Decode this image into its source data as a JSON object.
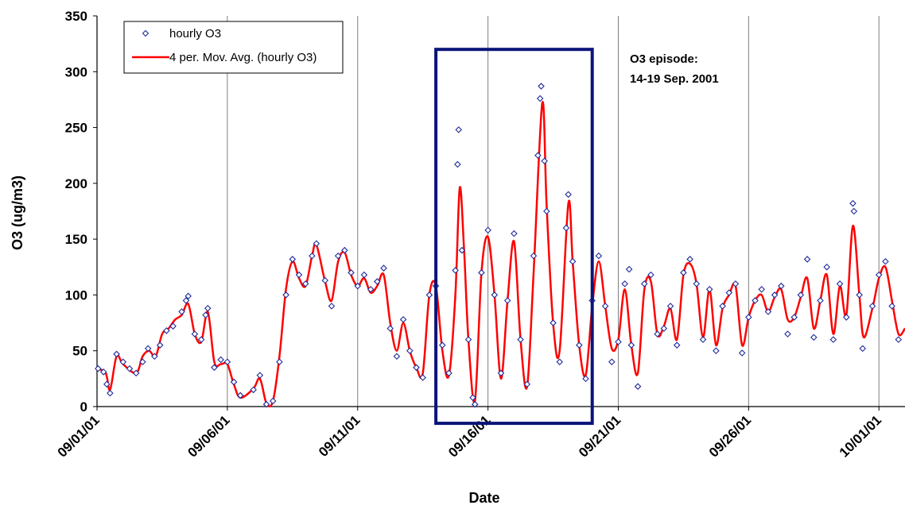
{
  "chart_data": {
    "type": "scatter",
    "xlabel": "Date",
    "ylabel": "O3 (ug/m3)",
    "ylim": [
      0,
      350
    ],
    "yticks": [
      0,
      50,
      100,
      150,
      200,
      250,
      300,
      350
    ],
    "xlim": [
      "2001-09-01",
      "2001-10-02"
    ],
    "xticks": [
      "09/01/01",
      "09/06/01",
      "09/11/01",
      "09/16/01",
      "09/21/01",
      "09/26/01",
      "10/01/01"
    ],
    "grid": "vertical lines at major x ticks",
    "legend_position": "top-left",
    "colors": {
      "scatter": "#1f2a9a",
      "moving_average": "#ff0000",
      "episode_box": "#0a1478"
    },
    "series": [
      {
        "name": "hourly O3",
        "kind": "scatter",
        "values": [
          [
            "2001-09-01 01:00",
            34
          ],
          [
            "2001-09-01 06:00",
            31
          ],
          [
            "2001-09-01 09:00",
            20
          ],
          [
            "2001-09-01 12:00",
            12
          ],
          [
            "2001-09-01 18:00",
            47
          ],
          [
            "2001-09-02 00:00",
            40
          ],
          [
            "2001-09-02 06:00",
            34
          ],
          [
            "2001-09-02 12:00",
            30
          ],
          [
            "2001-09-02 18:00",
            40
          ],
          [
            "2001-09-02 23:00",
            52
          ],
          [
            "2001-09-03 05:00",
            45
          ],
          [
            "2001-09-03 10:00",
            55
          ],
          [
            "2001-09-03 16:00",
            68
          ],
          [
            "2001-09-03 22:00",
            72
          ],
          [
            "2001-09-04 06:00",
            85
          ],
          [
            "2001-09-04 10:00",
            95
          ],
          [
            "2001-09-04 12:00",
            99
          ],
          [
            "2001-09-04 18:00",
            65
          ],
          [
            "2001-09-05 00:00",
            60
          ],
          [
            "2001-09-05 04:00",
            82
          ],
          [
            "2001-09-05 06:00",
            88
          ],
          [
            "2001-09-05 12:00",
            35
          ],
          [
            "2001-09-05 18:00",
            42
          ],
          [
            "2001-09-06 00:00",
            40
          ],
          [
            "2001-09-06 06:00",
            22
          ],
          [
            "2001-09-06 12:00",
            10
          ],
          [
            "2001-09-07 00:00",
            15
          ],
          [
            "2001-09-07 06:00",
            28
          ],
          [
            "2001-09-07 12:00",
            2
          ],
          [
            "2001-09-07 18:00",
            5
          ],
          [
            "2001-09-08 00:00",
            40
          ],
          [
            "2001-09-08 06:00",
            100
          ],
          [
            "2001-09-08 12:00",
            132
          ],
          [
            "2001-09-08 18:00",
            118
          ],
          [
            "2001-09-09 00:00",
            110
          ],
          [
            "2001-09-09 06:00",
            135
          ],
          [
            "2001-09-09 10:00",
            146
          ],
          [
            "2001-09-09 18:00",
            113
          ],
          [
            "2001-09-10 00:00",
            90
          ],
          [
            "2001-09-10 06:00",
            135
          ],
          [
            "2001-09-10 12:00",
            140
          ],
          [
            "2001-09-10 18:00",
            120
          ],
          [
            "2001-09-11 00:00",
            108
          ],
          [
            "2001-09-11 06:00",
            118
          ],
          [
            "2001-09-11 12:00",
            105
          ],
          [
            "2001-09-11 18:00",
            112
          ],
          [
            "2001-09-12 00:00",
            124
          ],
          [
            "2001-09-12 06:00",
            70
          ],
          [
            "2001-09-12 12:00",
            45
          ],
          [
            "2001-09-12 18:00",
            78
          ],
          [
            "2001-09-13 00:00",
            50
          ],
          [
            "2001-09-13 06:00",
            35
          ],
          [
            "2001-09-13 12:00",
            26
          ],
          [
            "2001-09-13 18:00",
            100
          ],
          [
            "2001-09-14 00:00",
            108
          ],
          [
            "2001-09-14 06:00",
            55
          ],
          [
            "2001-09-14 12:00",
            30
          ],
          [
            "2001-09-14 18:00",
            122
          ],
          [
            "2001-09-14 20:00",
            217
          ],
          [
            "2001-09-14 21:00",
            248
          ],
          [
            "2001-09-15 00:00",
            140
          ],
          [
            "2001-09-15 06:00",
            60
          ],
          [
            "2001-09-15 10:00",
            8
          ],
          [
            "2001-09-15 12:00",
            2
          ],
          [
            "2001-09-15 18:00",
            120
          ],
          [
            "2001-09-16 00:00",
            158
          ],
          [
            "2001-09-16 06:00",
            100
          ],
          [
            "2001-09-16 12:00",
            30
          ],
          [
            "2001-09-16 18:00",
            95
          ],
          [
            "2001-09-17 00:00",
            155
          ],
          [
            "2001-09-17 06:00",
            60
          ],
          [
            "2001-09-17 12:00",
            20
          ],
          [
            "2001-09-17 18:00",
            135
          ],
          [
            "2001-09-17 22:00",
            225
          ],
          [
            "2001-09-18 00:00",
            276
          ],
          [
            "2001-09-18 01:00",
            287
          ],
          [
            "2001-09-18 04:00",
            220
          ],
          [
            "2001-09-18 06:00",
            175
          ],
          [
            "2001-09-18 12:00",
            75
          ],
          [
            "2001-09-18 18:00",
            40
          ],
          [
            "2001-09-19 00:00",
            160
          ],
          [
            "2001-09-19 02:00",
            190
          ],
          [
            "2001-09-19 06:00",
            130
          ],
          [
            "2001-09-19 12:00",
            55
          ],
          [
            "2001-09-19 18:00",
            25
          ],
          [
            "2001-09-20 00:00",
            95
          ],
          [
            "2001-09-20 06:00",
            135
          ],
          [
            "2001-09-20 12:00",
            90
          ],
          [
            "2001-09-20 18:00",
            40
          ],
          [
            "2001-09-21 00:00",
            58
          ],
          [
            "2001-09-21 06:00",
            110
          ],
          [
            "2001-09-21 10:00",
            123
          ],
          [
            "2001-09-21 12:00",
            55
          ],
          [
            "2001-09-21 18:00",
            18
          ],
          [
            "2001-09-22 00:00",
            110
          ],
          [
            "2001-09-22 06:00",
            118
          ],
          [
            "2001-09-22 12:00",
            65
          ],
          [
            "2001-09-22 18:00",
            70
          ],
          [
            "2001-09-23 00:00",
            90
          ],
          [
            "2001-09-23 06:00",
            55
          ],
          [
            "2001-09-23 12:00",
            120
          ],
          [
            "2001-09-23 18:00",
            132
          ],
          [
            "2001-09-24 00:00",
            110
          ],
          [
            "2001-09-24 06:00",
            60
          ],
          [
            "2001-09-24 12:00",
            105
          ],
          [
            "2001-09-24 18:00",
            50
          ],
          [
            "2001-09-25 00:00",
            90
          ],
          [
            "2001-09-25 06:00",
            102
          ],
          [
            "2001-09-25 12:00",
            110
          ],
          [
            "2001-09-25 18:00",
            48
          ],
          [
            "2001-09-26 00:00",
            80
          ],
          [
            "2001-09-26 06:00",
            95
          ],
          [
            "2001-09-26 12:00",
            105
          ],
          [
            "2001-09-26 18:00",
            85
          ],
          [
            "2001-09-27 00:00",
            100
          ],
          [
            "2001-09-27 06:00",
            108
          ],
          [
            "2001-09-27 12:00",
            65
          ],
          [
            "2001-09-27 18:00",
            80
          ],
          [
            "2001-09-28 00:00",
            100
          ],
          [
            "2001-09-28 06:00",
            132
          ],
          [
            "2001-09-28 12:00",
            62
          ],
          [
            "2001-09-28 18:00",
            95
          ],
          [
            "2001-09-29 00:00",
            125
          ],
          [
            "2001-09-29 06:00",
            60
          ],
          [
            "2001-09-29 12:00",
            110
          ],
          [
            "2001-09-29 18:00",
            80
          ],
          [
            "2001-09-30 00:00",
            182
          ],
          [
            "2001-09-30 01:00",
            175
          ],
          [
            "2001-09-30 06:00",
            100
          ],
          [
            "2001-09-30 09:00",
            52
          ],
          [
            "2001-09-30 18:00",
            90
          ],
          [
            "2001-10-01 00:00",
            118
          ],
          [
            "2001-10-01 06:00",
            130
          ],
          [
            "2001-10-01 12:00",
            90
          ],
          [
            "2001-10-01 18:00",
            60
          ]
        ]
      },
      {
        "name": "4 per. Mov. Avg. (hourly O3)",
        "kind": "line",
        "values": [
          [
            "2001-09-01 00:00",
            34
          ],
          [
            "2001-09-01 08:00",
            30
          ],
          [
            "2001-09-01 12:00",
            15
          ],
          [
            "2001-09-01 18:00",
            45
          ],
          [
            "2001-09-02 00:00",
            38
          ],
          [
            "2001-09-02 12:00",
            30
          ],
          [
            "2001-09-02 18:00",
            45
          ],
          [
            "2001-09-03 00:00",
            50
          ],
          [
            "2001-09-03 06:00",
            45
          ],
          [
            "2001-09-03 12:00",
            65
          ],
          [
            "2001-09-03 18:00",
            70
          ],
          [
            "2001-09-04 00:00",
            78
          ],
          [
            "2001-09-04 06:00",
            82
          ],
          [
            "2001-09-04 12:00",
            92
          ],
          [
            "2001-09-04 18:00",
            65
          ],
          [
            "2001-09-05 00:00",
            58
          ],
          [
            "2001-09-05 06:00",
            85
          ],
          [
            "2001-09-05 12:00",
            40
          ],
          [
            "2001-09-05 18:00",
            38
          ],
          [
            "2001-09-06 00:00",
            38
          ],
          [
            "2001-09-06 06:00",
            20
          ],
          [
            "2001-09-06 12:00",
            8
          ],
          [
            "2001-09-07 00:00",
            16
          ],
          [
            "2001-09-07 06:00",
            25
          ],
          [
            "2001-09-07 12:00",
            3
          ],
          [
            "2001-09-07 18:00",
            5
          ],
          [
            "2001-09-08 00:00",
            45
          ],
          [
            "2001-09-08 06:00",
            105
          ],
          [
            "2001-09-08 12:00",
            130
          ],
          [
            "2001-09-08 18:00",
            115
          ],
          [
            "2001-09-09 00:00",
            108
          ],
          [
            "2001-09-09 06:00",
            135
          ],
          [
            "2001-09-09 10:00",
            145
          ],
          [
            "2001-09-09 18:00",
            112
          ],
          [
            "2001-09-10 00:00",
            95
          ],
          [
            "2001-09-10 06:00",
            130
          ],
          [
            "2001-09-10 12:00",
            138
          ],
          [
            "2001-09-10 18:00",
            118
          ],
          [
            "2001-09-11 00:00",
            108
          ],
          [
            "2001-09-11 06:00",
            115
          ],
          [
            "2001-09-11 12:00",
            102
          ],
          [
            "2001-09-11 18:00",
            108
          ],
          [
            "2001-09-12 00:00",
            118
          ],
          [
            "2001-09-12 06:00",
            75
          ],
          [
            "2001-09-12 12:00",
            50
          ],
          [
            "2001-09-12 18:00",
            75
          ],
          [
            "2001-09-13 00:00",
            50
          ],
          [
            "2001-09-13 06:00",
            35
          ],
          [
            "2001-09-13 12:00",
            30
          ],
          [
            "2001-09-13 18:00",
            100
          ],
          [
            "2001-09-14 00:00",
            108
          ],
          [
            "2001-09-14 06:00",
            50
          ],
          [
            "2001-09-14 12:00",
            28
          ],
          [
            "2001-09-14 18:00",
            100
          ],
          [
            "2001-09-14 22:00",
            196
          ],
          [
            "2001-09-15 02:00",
            140
          ],
          [
            "2001-09-15 06:00",
            60
          ],
          [
            "2001-09-15 12:00",
            5
          ],
          [
            "2001-09-15 18:00",
            120
          ],
          [
            "2001-09-16 00:00",
            152
          ],
          [
            "2001-09-16 06:00",
            100
          ],
          [
            "2001-09-16 12:00",
            25
          ],
          [
            "2001-09-16 18:00",
            95
          ],
          [
            "2001-09-17 00:00",
            148
          ],
          [
            "2001-09-17 06:00",
            60
          ],
          [
            "2001-09-17 12:00",
            18
          ],
          [
            "2001-09-17 18:00",
            120
          ],
          [
            "2001-09-18 02:00",
            272
          ],
          [
            "2001-09-18 06:00",
            180
          ],
          [
            "2001-09-18 12:00",
            75
          ],
          [
            "2001-09-18 18:00",
            50
          ],
          [
            "2001-09-19 02:00",
            182
          ],
          [
            "2001-09-19 06:00",
            130
          ],
          [
            "2001-09-19 12:00",
            55
          ],
          [
            "2001-09-19 18:00",
            28
          ],
          [
            "2001-09-20 00:00",
            90
          ],
          [
            "2001-09-20 06:00",
            130
          ],
          [
            "2001-09-20 12:00",
            90
          ],
          [
            "2001-09-20 18:00",
            52
          ],
          [
            "2001-09-21 00:00",
            60
          ],
          [
            "2001-09-21 06:00",
            105
          ],
          [
            "2001-09-21 12:00",
            55
          ],
          [
            "2001-09-21 18:00",
            30
          ],
          [
            "2001-09-22 00:00",
            105
          ],
          [
            "2001-09-22 06:00",
            112
          ],
          [
            "2001-09-22 12:00",
            65
          ],
          [
            "2001-09-22 18:00",
            72
          ],
          [
            "2001-09-23 00:00",
            88
          ],
          [
            "2001-09-23 06:00",
            60
          ],
          [
            "2001-09-23 12:00",
            118
          ],
          [
            "2001-09-23 18:00",
            128
          ],
          [
            "2001-09-24 00:00",
            110
          ],
          [
            "2001-09-24 06:00",
            62
          ],
          [
            "2001-09-24 12:00",
            105
          ],
          [
            "2001-09-24 18:00",
            55
          ],
          [
            "2001-09-25 00:00",
            88
          ],
          [
            "2001-09-25 06:00",
            100
          ],
          [
            "2001-09-25 12:00",
            108
          ],
          [
            "2001-09-25 18:00",
            55
          ],
          [
            "2001-09-26 00:00",
            80
          ],
          [
            "2001-09-26 06:00",
            95
          ],
          [
            "2001-09-26 12:00",
            100
          ],
          [
            "2001-09-26 18:00",
            85
          ],
          [
            "2001-09-27 00:00",
            98
          ],
          [
            "2001-09-27 06:00",
            105
          ],
          [
            "2001-09-27 12:00",
            78
          ],
          [
            "2001-09-27 18:00",
            80
          ],
          [
            "2001-09-28 00:00",
            98
          ],
          [
            "2001-09-28 06:00",
            115
          ],
          [
            "2001-09-28 12:00",
            70
          ],
          [
            "2001-09-28 18:00",
            95
          ],
          [
            "2001-09-29 00:00",
            118
          ],
          [
            "2001-09-29 06:00",
            65
          ],
          [
            "2001-09-29 12:00",
            108
          ],
          [
            "2001-09-29 18:00",
            82
          ],
          [
            "2001-09-30 00:00",
            162
          ],
          [
            "2001-09-30 06:00",
            100
          ],
          [
            "2001-09-30 10:00",
            62
          ],
          [
            "2001-09-30 18:00",
            88
          ],
          [
            "2001-10-01 00:00",
            115
          ],
          [
            "2001-10-01 06:00",
            125
          ],
          [
            "2001-10-01 12:00",
            95
          ],
          [
            "2001-10-01 18:00",
            65
          ],
          [
            "2001-10-02 00:00",
            70
          ]
        ]
      }
    ],
    "legend": [
      "hourly O3",
      "4 per. Mov. Avg. (hourly O3)"
    ],
    "annotation": {
      "lines": [
        "O3 episode:",
        "14-19 Sep. 2001"
      ],
      "box_x_range": [
        "2001-09-14 00:00",
        "2001-09-20 00:00"
      ],
      "box_y_range": [
        -15,
        320
      ]
    }
  }
}
